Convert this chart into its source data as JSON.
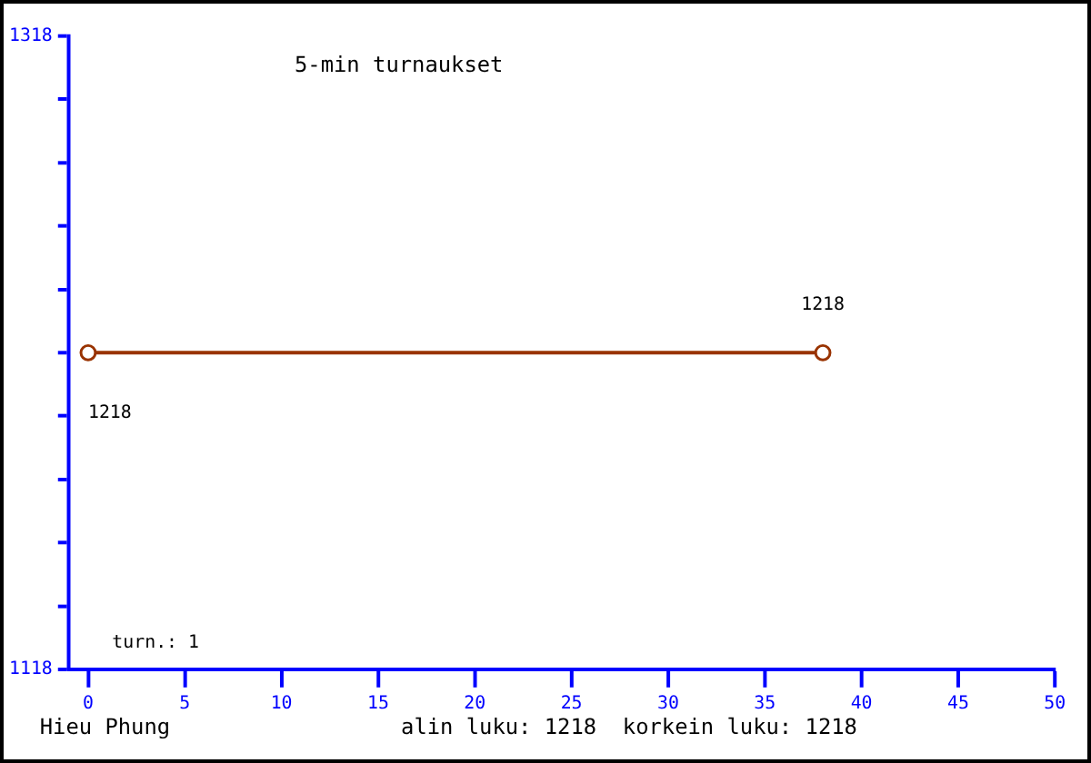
{
  "chart_data": {
    "type": "line",
    "title": "5-min turnaukset",
    "x": [
      0,
      38
    ],
    "series": [
      {
        "color": "#993300",
        "values": [
          1218,
          1218
        ],
        "value_labels": [
          "1218",
          "1218"
        ]
      }
    ],
    "xlim": [
      -1,
      50
    ],
    "xticks": [
      0,
      5,
      10,
      15,
      20,
      25,
      30,
      35,
      40,
      45,
      50
    ],
    "ylim": [
      1118,
      1318
    ],
    "yticks": [
      1118,
      {
        "value": 1138,
        "label": null
      },
      {
        "value": 1158,
        "label": null
      },
      {
        "value": 1178,
        "label": null
      },
      {
        "value": 1198,
        "label": null
      },
      {
        "value": 1218,
        "label": null
      },
      {
        "value": 1238,
        "label": null
      },
      {
        "value": 1258,
        "label": null
      },
      {
        "value": 1278,
        "label": null
      },
      {
        "value": 1298,
        "label": null
      },
      1318
    ],
    "marker": "circle",
    "line_style": "solid",
    "annotations": [
      "turn.: 1",
      "Hieu Phung",
      "alin luku: 1218  korkein luku: 1218"
    ]
  }
}
